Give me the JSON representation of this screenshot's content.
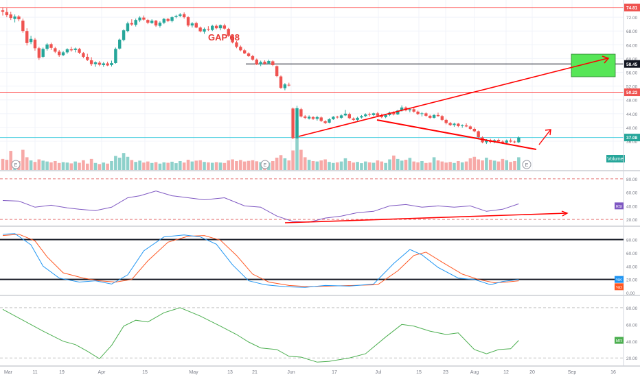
{
  "chart_data": {
    "type": "candlestick",
    "colors": {
      "up": "#26a69a",
      "down": "#ef5350",
      "vol_up": "#8ed1cb",
      "vol_down": "#f7a9a7",
      "rsi": "#7e57c2",
      "stoch_k": "#2196f3",
      "stoch_d": "#ff5722",
      "mfi": "#4caf50",
      "annotation": "#ff0000",
      "target_box": "#57e657",
      "price_pill": "#ef5350",
      "volume_pill": "#26a69a",
      "grid": "#f0f3fa"
    },
    "x_axis": {
      "labels": [
        "Mar",
        "11",
        "19",
        "Apr",
        "15",
        "May",
        "13",
        "21",
        "Jun",
        "17",
        "Jul",
        "15",
        "23",
        "Aug",
        "12",
        "20",
        "Sep",
        "16"
      ]
    },
    "price_panel": {
      "y_ticks": [
        "72.00",
        "68.00",
        "64.00",
        "60.00",
        "56.00",
        "52.00",
        "48.00",
        "44.00",
        "40.00",
        "36.00"
      ],
      "price_labels": [
        {
          "value": "74.81",
          "kind": "line"
        },
        {
          "value": "58.45",
          "kind": "dark"
        },
        {
          "value": "50.23",
          "kind": "line"
        },
        {
          "value": "37.08",
          "kind": "last"
        }
      ],
      "horizontal_lines": [
        74.81,
        58.45,
        50.23,
        37.08
      ],
      "annotation_text": "GAP 68",
      "volume_label": "Volume",
      "earnings_marker": "E",
      "candles": [
        [
          74.0,
          74.8,
          72.5,
          73.6
        ],
        [
          73.5,
          74.6,
          72.0,
          72.6
        ],
        [
          72.8,
          73.6,
          71.2,
          71.8
        ],
        [
          71.5,
          72.8,
          70.5,
          72.2
        ],
        [
          72.2,
          72.6,
          70.8,
          71.4
        ],
        [
          71.0,
          71.6,
          67.5,
          68.0
        ],
        [
          68.0,
          68.8,
          63.8,
          64.5
        ],
        [
          64.8,
          66.6,
          64.2,
          65.7
        ],
        [
          65.5,
          66.0,
          62.3,
          63.0
        ],
        [
          63.0,
          63.4,
          59.6,
          60.2
        ],
        [
          60.5,
          63.2,
          60.2,
          62.8
        ],
        [
          62.8,
          64.5,
          62.3,
          64.1
        ],
        [
          64.2,
          64.6,
          62.5,
          63.1
        ],
        [
          63.0,
          63.4,
          61.6,
          62.0
        ],
        [
          62.0,
          62.5,
          60.5,
          61.0
        ],
        [
          61.0,
          62.2,
          60.7,
          61.8
        ],
        [
          61.8,
          63.0,
          61.4,
          62.7
        ],
        [
          62.7,
          63.4,
          62.0,
          62.4
        ],
        [
          62.5,
          63.2,
          61.8,
          62.9
        ],
        [
          62.8,
          63.1,
          61.3,
          61.7
        ],
        [
          61.6,
          61.9,
          60.1,
          60.5
        ],
        [
          60.5,
          61.4,
          59.3,
          59.6
        ],
        [
          59.5,
          60.4,
          57.9,
          58.4
        ],
        [
          58.4,
          59.2,
          57.6,
          58.9
        ],
        [
          58.8,
          59.3,
          57.8,
          58.2
        ],
        [
          58.1,
          59.0,
          57.6,
          58.6
        ],
        [
          58.6,
          59.1,
          57.8,
          58.0
        ],
        [
          58.1,
          59.4,
          57.7,
          58.7
        ],
        [
          58.7,
          63.2,
          58.5,
          62.8
        ],
        [
          62.9,
          65.8,
          62.6,
          65.5
        ],
        [
          65.4,
          68.5,
          65.0,
          68.2
        ],
        [
          68.0,
          70.7,
          67.6,
          70.2
        ],
        [
          70.3,
          71.4,
          69.5,
          69.9
        ],
        [
          69.8,
          71.6,
          69.3,
          71.2
        ],
        [
          71.1,
          72.3,
          70.6,
          71.9
        ],
        [
          71.9,
          72.5,
          71.0,
          71.3
        ],
        [
          71.2,
          71.5,
          70.0,
          70.4
        ],
        [
          70.3,
          71.4,
          70.1,
          71.0
        ],
        [
          71.0,
          71.2,
          69.2,
          69.6
        ],
        [
          69.5,
          70.8,
          69.0,
          70.4
        ],
        [
          70.4,
          71.8,
          70.0,
          71.5
        ],
        [
          71.5,
          71.8,
          70.6,
          70.9
        ],
        [
          70.9,
          72.3,
          70.5,
          72.0
        ],
        [
          72.1,
          72.7,
          71.7,
          72.4
        ],
        [
          72.4,
          73.2,
          72.0,
          72.8
        ],
        [
          72.9,
          73.4,
          71.6,
          72.0
        ],
        [
          72.0,
          72.3,
          69.2,
          69.6
        ],
        [
          69.6,
          70.6,
          69.0,
          70.2
        ],
        [
          70.3,
          70.7,
          68.8,
          69.0
        ],
        [
          69.0,
          69.3,
          67.6,
          67.9
        ],
        [
          67.8,
          69.0,
          67.2,
          68.6
        ],
        [
          68.6,
          69.4,
          68.0,
          68.4
        ],
        [
          68.3,
          69.8,
          68.0,
          69.5
        ],
        [
          69.5,
          69.9,
          68.5,
          68.8
        ],
        [
          68.8,
          69.9,
          68.2,
          69.7
        ],
        [
          69.6,
          70.1,
          68.4,
          68.7
        ],
        [
          68.6,
          68.9,
          66.3,
          66.6
        ],
        [
          66.6,
          66.9,
          64.4,
          64.7
        ],
        [
          64.7,
          65.1,
          63.0,
          63.4
        ],
        [
          63.4,
          63.8,
          62.1,
          62.4
        ],
        [
          62.4,
          62.8,
          61.3,
          61.5
        ],
        [
          61.5,
          61.8,
          60.5,
          60.7
        ],
        [
          60.7,
          61.1,
          59.4,
          59.7
        ],
        [
          59.7,
          60.0,
          58.1,
          58.3
        ],
        [
          58.3,
          59.4,
          57.8,
          59.0
        ],
        [
          59.1,
          59.5,
          58.2,
          58.5
        ],
        [
          58.6,
          59.7,
          58.3,
          59.3
        ],
        [
          59.2,
          59.5,
          57.8,
          58.1
        ],
        [
          57.8,
          58.0,
          54.6,
          54.9
        ],
        [
          54.8,
          55.1,
          51.2,
          51.5
        ],
        [
          51.4,
          52.9,
          50.8,
          52.5
        ],
        [
          52.4,
          53.0,
          51.9,
          52.3
        ],
        [
          45.5,
          45.8,
          36.6,
          36.9
        ],
        [
          36.9,
          46.3,
          36.7,
          45.6
        ],
        [
          45.3,
          45.7,
          42.9,
          43.2
        ],
        [
          43.2,
          43.6,
          42.4,
          42.8
        ],
        [
          42.6,
          43.5,
          42.3,
          43.1
        ],
        [
          43.0,
          43.3,
          42.2,
          42.5
        ],
        [
          42.5,
          43.4,
          42.0,
          43.0
        ],
        [
          42.9,
          43.2,
          41.6,
          41.9
        ],
        [
          41.8,
          42.1,
          41.0,
          41.3
        ],
        [
          41.4,
          42.7,
          41.2,
          42.4
        ],
        [
          42.4,
          43.3,
          42.2,
          43.1
        ],
        [
          43.1,
          43.4,
          42.6,
          42.9
        ],
        [
          42.8,
          43.8,
          42.5,
          43.5
        ],
        [
          43.5,
          45.1,
          43.3,
          44.0
        ],
        [
          43.9,
          44.3,
          42.4,
          42.7
        ],
        [
          42.6,
          42.9,
          41.9,
          42.2
        ],
        [
          42.2,
          43.1,
          41.9,
          42.8
        ],
        [
          42.9,
          43.6,
          42.6,
          43.3
        ],
        [
          43.3,
          44.1,
          43.0,
          43.8
        ],
        [
          43.8,
          44.3,
          43.2,
          43.6
        ],
        [
          43.6,
          44.3,
          43.3,
          44.1
        ],
        [
          44.1,
          44.5,
          43.1,
          43.4
        ],
        [
          43.4,
          44.0,
          42.7,
          43.0
        ],
        [
          43.0,
          43.8,
          42.7,
          43.6
        ],
        [
          43.6,
          44.6,
          43.3,
          44.3
        ],
        [
          44.3,
          44.7,
          43.5,
          43.8
        ],
        [
          43.8,
          45.1,
          43.6,
          44.9
        ],
        [
          44.9,
          46.4,
          44.6,
          45.8
        ],
        [
          45.8,
          46.1,
          44.7,
          45.0
        ],
        [
          45.0,
          45.6,
          44.4,
          45.3
        ],
        [
          45.3,
          45.8,
          44.3,
          44.6
        ],
        [
          44.6,
          44.9,
          43.6,
          43.9
        ],
        [
          43.9,
          44.5,
          43.2,
          44.1
        ],
        [
          44.1,
          44.4,
          43.1,
          43.4
        ],
        [
          43.4,
          43.7,
          42.5,
          42.8
        ],
        [
          42.8,
          43.9,
          42.6,
          43.6
        ],
        [
          43.6,
          44.3,
          43.1,
          43.3
        ],
        [
          43.3,
          43.6,
          41.9,
          42.2
        ],
        [
          42.2,
          42.5,
          40.9,
          41.3
        ],
        [
          41.3,
          41.6,
          40.4,
          40.7
        ],
        [
          40.7,
          41.4,
          40.2,
          41.1
        ],
        [
          41.1,
          41.3,
          40.1,
          40.4
        ],
        [
          40.4,
          40.9,
          39.9,
          40.6
        ],
        [
          40.6,
          41.2,
          40.1,
          40.3
        ],
        [
          40.3,
          40.6,
          39.3,
          39.6
        ],
        [
          39.6,
          40.0,
          38.6,
          38.9
        ],
        [
          38.9,
          39.1,
          36.9,
          37.2
        ],
        [
          37.1,
          37.4,
          35.4,
          35.7
        ],
        [
          35.7,
          36.6,
          35.2,
          36.4
        ],
        [
          36.3,
          36.7,
          35.4,
          35.8
        ],
        [
          35.8,
          36.6,
          35.4,
          36.3
        ],
        [
          36.4,
          36.8,
          35.5,
          35.9
        ],
        [
          35.9,
          36.3,
          35.2,
          35.6
        ],
        [
          35.6,
          36.5,
          35.3,
          36.2
        ],
        [
          36.2,
          36.8,
          35.6,
          35.9
        ],
        [
          35.9,
          36.2,
          35.4,
          35.7
        ],
        [
          35.7,
          37.4,
          35.5,
          37.08
        ]
      ],
      "volumes": [
        0.52,
        0.48,
        0.9,
        0.35,
        0.42,
        0.95,
        0.6,
        0.45,
        0.38,
        0.5,
        0.44,
        0.4,
        0.36,
        0.42,
        0.33,
        0.37,
        0.35,
        0.31,
        0.4,
        0.34,
        0.46,
        0.3,
        0.52,
        0.33,
        0.28,
        0.35,
        0.3,
        0.42,
        0.66,
        0.58,
        0.8,
        0.62,
        0.47,
        0.38,
        0.44,
        0.35,
        0.4,
        0.33,
        0.37,
        0.3,
        0.36,
        0.34,
        0.39,
        0.32,
        0.42,
        0.35,
        0.48,
        0.4,
        0.44,
        0.46,
        0.38,
        0.36,
        0.34,
        0.37,
        0.35,
        0.33,
        0.45,
        0.5,
        0.42,
        0.47,
        0.4,
        0.43,
        0.46,
        0.41,
        0.37,
        0.4,
        0.35,
        0.42,
        0.58,
        0.7,
        0.55,
        0.45,
        0.92,
        2.35,
        0.95,
        0.6,
        0.48,
        0.42,
        0.4,
        0.45,
        0.5,
        0.38,
        0.33,
        0.36,
        0.4,
        0.55,
        0.42,
        0.35,
        0.38,
        0.32,
        0.4,
        0.36,
        0.34,
        0.45,
        0.4,
        0.33,
        0.5,
        0.68,
        0.52,
        0.44,
        0.48,
        0.57,
        0.4,
        0.36,
        0.42,
        0.33,
        0.35,
        0.6,
        0.45,
        0.4,
        0.35,
        0.38,
        0.33,
        0.42,
        0.36,
        0.4,
        0.55,
        0.62,
        0.5,
        0.45,
        0.58,
        0.48,
        0.44,
        0.4,
        0.52,
        0.46,
        0.38,
        0.42,
        0.6
      ]
    },
    "rsi_panel": {
      "label": "RSI",
      "y_ticks": [
        "80.00",
        "60.00",
        "40.00",
        "20.00"
      ],
      "band_levels": [
        80,
        20
      ],
      "x": [
        0,
        4,
        8,
        12,
        16,
        19,
        23,
        27,
        31,
        34,
        38,
        42,
        46,
        50,
        55,
        60,
        64,
        68,
        72,
        76,
        80,
        84,
        88,
        92,
        96,
        100,
        104,
        108,
        112,
        116,
        120,
        124,
        128
      ],
      "values": [
        48,
        47,
        38,
        41,
        37,
        35,
        33,
        38,
        52,
        55,
        62,
        55,
        52,
        49,
        52,
        40,
        38,
        25,
        17,
        16,
        22,
        25,
        30,
        32,
        40,
        42,
        38,
        40,
        38,
        40,
        32,
        35,
        43
      ]
    },
    "stoch_panel": {
      "k_label": "%K",
      "d_label": "%D",
      "y_ticks": [
        "80.00",
        "60.00",
        "40.00",
        "20.00",
        "0.00"
      ],
      "band_levels": [
        80,
        20
      ],
      "k": {
        "x": [
          0,
          3,
          7,
          10,
          14,
          19,
          23,
          27,
          31,
          35,
          40,
          45,
          49,
          53,
          57,
          61,
          65,
          70,
          75,
          80,
          86,
          92,
          97,
          101,
          104,
          108,
          113,
          117,
          121,
          124,
          128
        ],
        "values": [
          88,
          89,
          72,
          40,
          22,
          16,
          18,
          13,
          27,
          63,
          84,
          87,
          84,
          73,
          42,
          18,
          12,
          9,
          8,
          11,
          10,
          13,
          44,
          65,
          57,
          38,
          22,
          20,
          12,
          17,
          20
        ]
      },
      "d": {
        "x": [
          0,
          4,
          8,
          11,
          15,
          20,
          24,
          28,
          32,
          36,
          41,
          46,
          50,
          54,
          58,
          62,
          66,
          71,
          76,
          81,
          87,
          93,
          98,
          102,
          105,
          109,
          114,
          118,
          122,
          125,
          128
        ],
        "values": [
          86,
          88,
          78,
          54,
          30,
          22,
          18,
          16,
          20,
          48,
          76,
          85,
          86,
          79,
          56,
          28,
          16,
          11,
          9,
          10,
          11,
          12,
          33,
          56,
          61,
          46,
          28,
          20,
          15,
          16,
          18
        ]
      }
    },
    "mfi_panel": {
      "label": "MFI",
      "y_ticks": [
        "80.00",
        "60.00",
        "40.00",
        "20.00"
      ],
      "band_levels": [
        80,
        20
      ],
      "x": [
        0,
        5,
        10,
        15,
        18,
        21,
        24,
        27,
        30,
        33,
        36,
        40,
        44,
        49,
        54,
        58,
        61,
        64,
        68,
        71,
        74,
        78,
        81,
        86,
        90,
        95,
        99,
        102,
        106,
        110,
        113,
        117,
        120,
        123,
        126,
        128
      ],
      "values": [
        78,
        65,
        52,
        40,
        36,
        28,
        19,
        35,
        58,
        65,
        63,
        74,
        80,
        70,
        58,
        48,
        39,
        32,
        30,
        22,
        21,
        15,
        16,
        20,
        25,
        45,
        60,
        58,
        52,
        48,
        50,
        30,
        25,
        30,
        31,
        41
      ]
    }
  }
}
